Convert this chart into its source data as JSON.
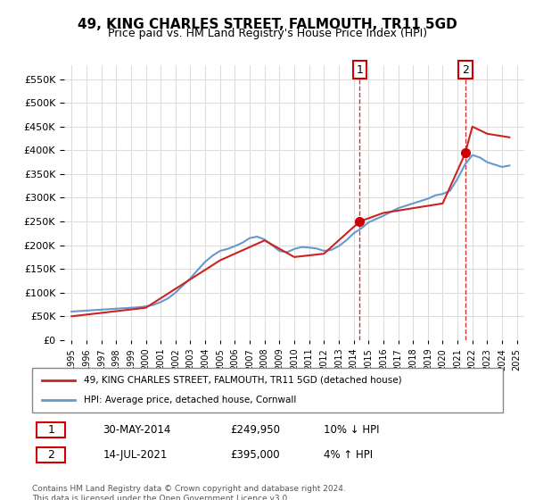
{
  "title": "49, KING CHARLES STREET, FALMOUTH, TR11 5GD",
  "subtitle": "Price paid vs. HM Land Registry's House Price Index (HPI)",
  "legend_line1": "49, KING CHARLES STREET, FALMOUTH, TR11 5GD (detached house)",
  "legend_line2": "HPI: Average price, detached house, Cornwall",
  "annotation1_label": "1",
  "annotation1_date": "30-MAY-2014",
  "annotation1_price": "£249,950",
  "annotation1_hpi": "10% ↓ HPI",
  "annotation2_label": "2",
  "annotation2_date": "14-JUL-2021",
  "annotation2_price": "£395,000",
  "annotation2_hpi": "4% ↑ HPI",
  "footer": "Contains HM Land Registry data © Crown copyright and database right 2024.\nThis data is licensed under the Open Government Licence v3.0.",
  "hpi_color": "#6699cc",
  "sale_color": "#cc2222",
  "sale_marker_color": "#cc0000",
  "vline_color": "#cc0000",
  "annotation_box_color": "#cc0000",
  "grid_color": "#dddddd",
  "bg_color": "#ffffff",
  "ylim": [
    0,
    580000
  ],
  "yticks": [
    0,
    50000,
    100000,
    150000,
    200000,
    250000,
    300000,
    350000,
    400000,
    450000,
    500000,
    550000
  ],
  "xlabel_start_year": 1995,
  "xlabel_end_year": 2025,
  "hpi_years": [
    1995,
    1995.5,
    1996,
    1996.5,
    1997,
    1997.5,
    1998,
    1998.5,
    1999,
    1999.5,
    2000,
    2000.5,
    2001,
    2001.5,
    2002,
    2002.5,
    2003,
    2003.5,
    2004,
    2004.5,
    2005,
    2005.5,
    2006,
    2006.5,
    2007,
    2007.5,
    2008,
    2008.5,
    2009,
    2009.5,
    2010,
    2010.5,
    2011,
    2011.5,
    2012,
    2012.5,
    2013,
    2013.5,
    2014,
    2014.5,
    2015,
    2015.5,
    2016,
    2016.5,
    2017,
    2017.5,
    2018,
    2018.5,
    2019,
    2019.5,
    2020,
    2020.5,
    2021,
    2021.5,
    2022,
    2022.5,
    2023,
    2023.5,
    2024,
    2024.5
  ],
  "hpi_values": [
    60000,
    61000,
    62000,
    63000,
    64000,
    65000,
    66000,
    67000,
    68000,
    69000,
    71000,
    74000,
    80000,
    88000,
    100000,
    115000,
    130000,
    148000,
    165000,
    178000,
    188000,
    192000,
    198000,
    205000,
    215000,
    218000,
    212000,
    200000,
    188000,
    185000,
    192000,
    196000,
    195000,
    193000,
    188000,
    190000,
    198000,
    210000,
    225000,
    235000,
    248000,
    255000,
    262000,
    270000,
    278000,
    283000,
    288000,
    293000,
    298000,
    305000,
    308000,
    315000,
    340000,
    370000,
    390000,
    385000,
    375000,
    370000,
    365000,
    368000
  ],
  "sale_points": [
    {
      "year": 2014.41,
      "price": 249950
    },
    {
      "year": 2021.54,
      "price": 395000
    }
  ],
  "vline_year1": 2014.41,
  "vline_year2": 2021.54
}
